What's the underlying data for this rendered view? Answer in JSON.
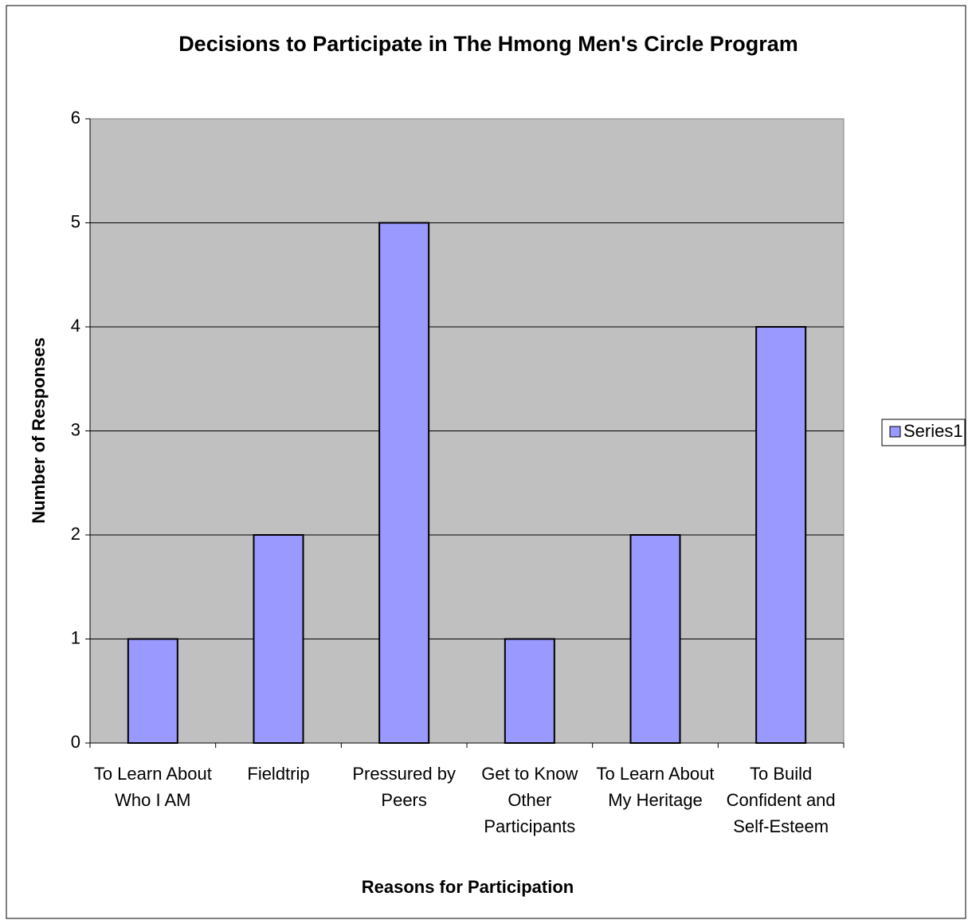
{
  "chart_data": {
    "type": "bar",
    "title": "Decisions to Participate in The Hmong Men's Circle Program",
    "xlabel": "Reasons for Participation",
    "ylabel": "Number of Responses",
    "categories": [
      "To Learn About Who I AM",
      "Fieldtrip",
      "Pressured by Peers",
      "Get to Know Other Participants",
      "To Learn About My Heritage",
      "To Build Confident and Self-Esteem"
    ],
    "series": [
      {
        "name": "Series1",
        "color": "#9999ff",
        "values": [
          1,
          2,
          5,
          1,
          2,
          4
        ]
      }
    ],
    "ylim": [
      0,
      6
    ],
    "yticks": [
      0,
      1,
      2,
      3,
      4,
      5,
      6
    ],
    "grid": true,
    "legend": "right"
  }
}
